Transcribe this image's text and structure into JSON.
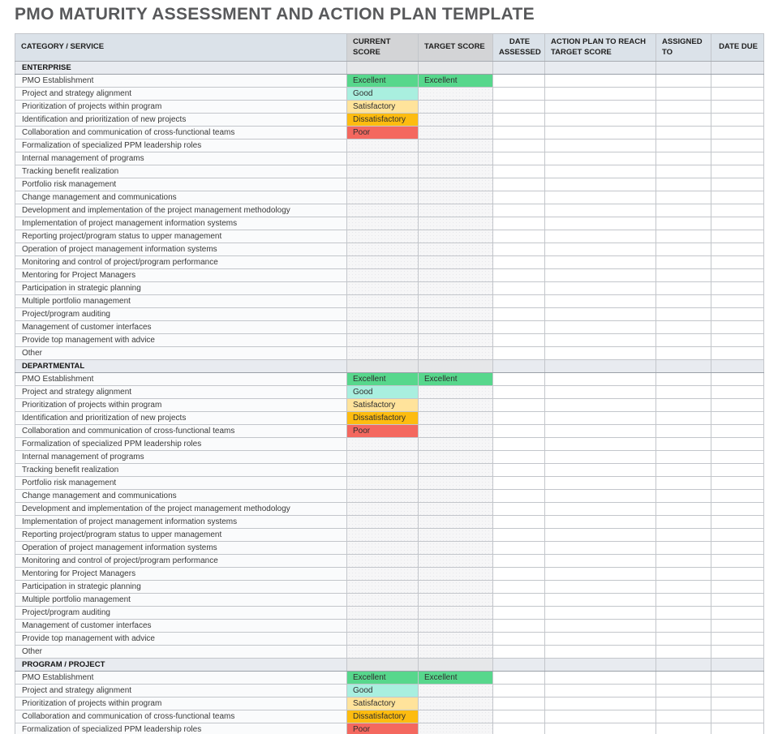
{
  "title": "PMO MATURITY ASSESSMENT AND ACTION PLAN TEMPLATE",
  "columns": [
    {
      "id": "category",
      "label": "CATEGORY / SERVICE"
    },
    {
      "id": "current_score",
      "label": "CURRENT SCORE"
    },
    {
      "id": "target_score",
      "label": "TARGET SCORE"
    },
    {
      "id": "date_assessed",
      "label": "DATE ASSESSED"
    },
    {
      "id": "action_plan",
      "label": "ACTION PLAN TO REACH TARGET SCORE"
    },
    {
      "id": "assigned_to",
      "label": "ASSIGNED TO"
    },
    {
      "id": "date_due",
      "label": "DATE DUE"
    }
  ],
  "score_colors": {
    "Excellent": "#57d78c",
    "Good": "#a9efdf",
    "Satisfactory": "#ffe39b",
    "Dissatisfactory": "#fdbc10",
    "Poor": "#f4685f"
  },
  "sections": [
    {
      "name": "ENTERPRISE",
      "rows": [
        {
          "service": "PMO Establishment",
          "current": "Excellent",
          "target": "Excellent"
        },
        {
          "service": "Project and strategy alignment",
          "current": "Good",
          "target": ""
        },
        {
          "service": "Prioritization of projects within program",
          "current": "Satisfactory",
          "target": ""
        },
        {
          "service": "Identification and prioritization of new projects",
          "current": "Dissatisfactory",
          "target": ""
        },
        {
          "service": "Collaboration and communication of cross-functional teams",
          "current": "Poor",
          "target": ""
        },
        {
          "service": "Formalization of specialized PPM leadership roles",
          "current": "",
          "target": ""
        },
        {
          "service": "Internal management of programs",
          "current": "",
          "target": ""
        },
        {
          "service": "Tracking benefit realization",
          "current": "",
          "target": ""
        },
        {
          "service": "Portfolio risk management",
          "current": "",
          "target": ""
        },
        {
          "service": "Change management and communications",
          "current": "",
          "target": ""
        },
        {
          "service": "Development and implementation of the project management methodology",
          "current": "",
          "target": ""
        },
        {
          "service": "Implementation of project management information systems",
          "current": "",
          "target": ""
        },
        {
          "service": "Reporting project/program status to upper management",
          "current": "",
          "target": ""
        },
        {
          "service": "Operation of project management information systems",
          "current": "",
          "target": ""
        },
        {
          "service": "Monitoring and control of project/program performance",
          "current": "",
          "target": ""
        },
        {
          "service": "Mentoring for Project Managers",
          "current": "",
          "target": ""
        },
        {
          "service": "Participation in strategic planning",
          "current": "",
          "target": ""
        },
        {
          "service": "Multiple portfolio management",
          "current": "",
          "target": ""
        },
        {
          "service": "Project/program auditing",
          "current": "",
          "target": ""
        },
        {
          "service": "Management of customer interfaces",
          "current": "",
          "target": ""
        },
        {
          "service": "Provide top management with advice",
          "current": "",
          "target": ""
        },
        {
          "service": "Other",
          "current": "",
          "target": ""
        }
      ]
    },
    {
      "name": "DEPARTMENTAL",
      "rows": [
        {
          "service": "PMO Establishment",
          "current": "Excellent",
          "target": "Excellent"
        },
        {
          "service": "Project and strategy alignment",
          "current": "Good",
          "target": ""
        },
        {
          "service": "Prioritization of projects within program",
          "current": "Satisfactory",
          "target": ""
        },
        {
          "service": "Identification and prioritization of new projects",
          "current": "Dissatisfactory",
          "target": ""
        },
        {
          "service": "Collaboration and communication of cross-functional teams",
          "current": "Poor",
          "target": ""
        },
        {
          "service": "Formalization of specialized PPM leadership roles",
          "current": "",
          "target": ""
        },
        {
          "service": "Internal management of programs",
          "current": "",
          "target": ""
        },
        {
          "service": "Tracking benefit realization",
          "current": "",
          "target": ""
        },
        {
          "service": "Portfolio risk management",
          "current": "",
          "target": ""
        },
        {
          "service": "Change management and communications",
          "current": "",
          "target": ""
        },
        {
          "service": "Development and implementation of the project management methodology",
          "current": "",
          "target": ""
        },
        {
          "service": "Implementation of project management information systems",
          "current": "",
          "target": ""
        },
        {
          "service": "Reporting project/program status to upper management",
          "current": "",
          "target": ""
        },
        {
          "service": "Operation of project management information systems",
          "current": "",
          "target": ""
        },
        {
          "service": "Monitoring and control of project/program performance",
          "current": "",
          "target": ""
        },
        {
          "service": "Mentoring for Project Managers",
          "current": "",
          "target": ""
        },
        {
          "service": "Participation in strategic planning",
          "current": "",
          "target": ""
        },
        {
          "service": "Multiple portfolio management",
          "current": "",
          "target": ""
        },
        {
          "service": "Project/program auditing",
          "current": "",
          "target": ""
        },
        {
          "service": "Management of customer interfaces",
          "current": "",
          "target": ""
        },
        {
          "service": "Provide top management with advice",
          "current": "",
          "target": ""
        },
        {
          "service": "Other",
          "current": "",
          "target": ""
        }
      ]
    },
    {
      "name": "PROGRAM / PROJECT",
      "rows": [
        {
          "service": "PMO Establishment",
          "current": "Excellent",
          "target": "Excellent"
        },
        {
          "service": "Project and strategy alignment",
          "current": "Good",
          "target": ""
        },
        {
          "service": "Prioritization of projects within program",
          "current": "Satisfactory",
          "target": ""
        },
        {
          "service": "Collaboration and communication of cross-functional teams",
          "current": "Dissatisfactory",
          "target": ""
        },
        {
          "service": "Formalization of specialized PPM leadership roles",
          "current": "Poor",
          "target": ""
        }
      ]
    }
  ]
}
